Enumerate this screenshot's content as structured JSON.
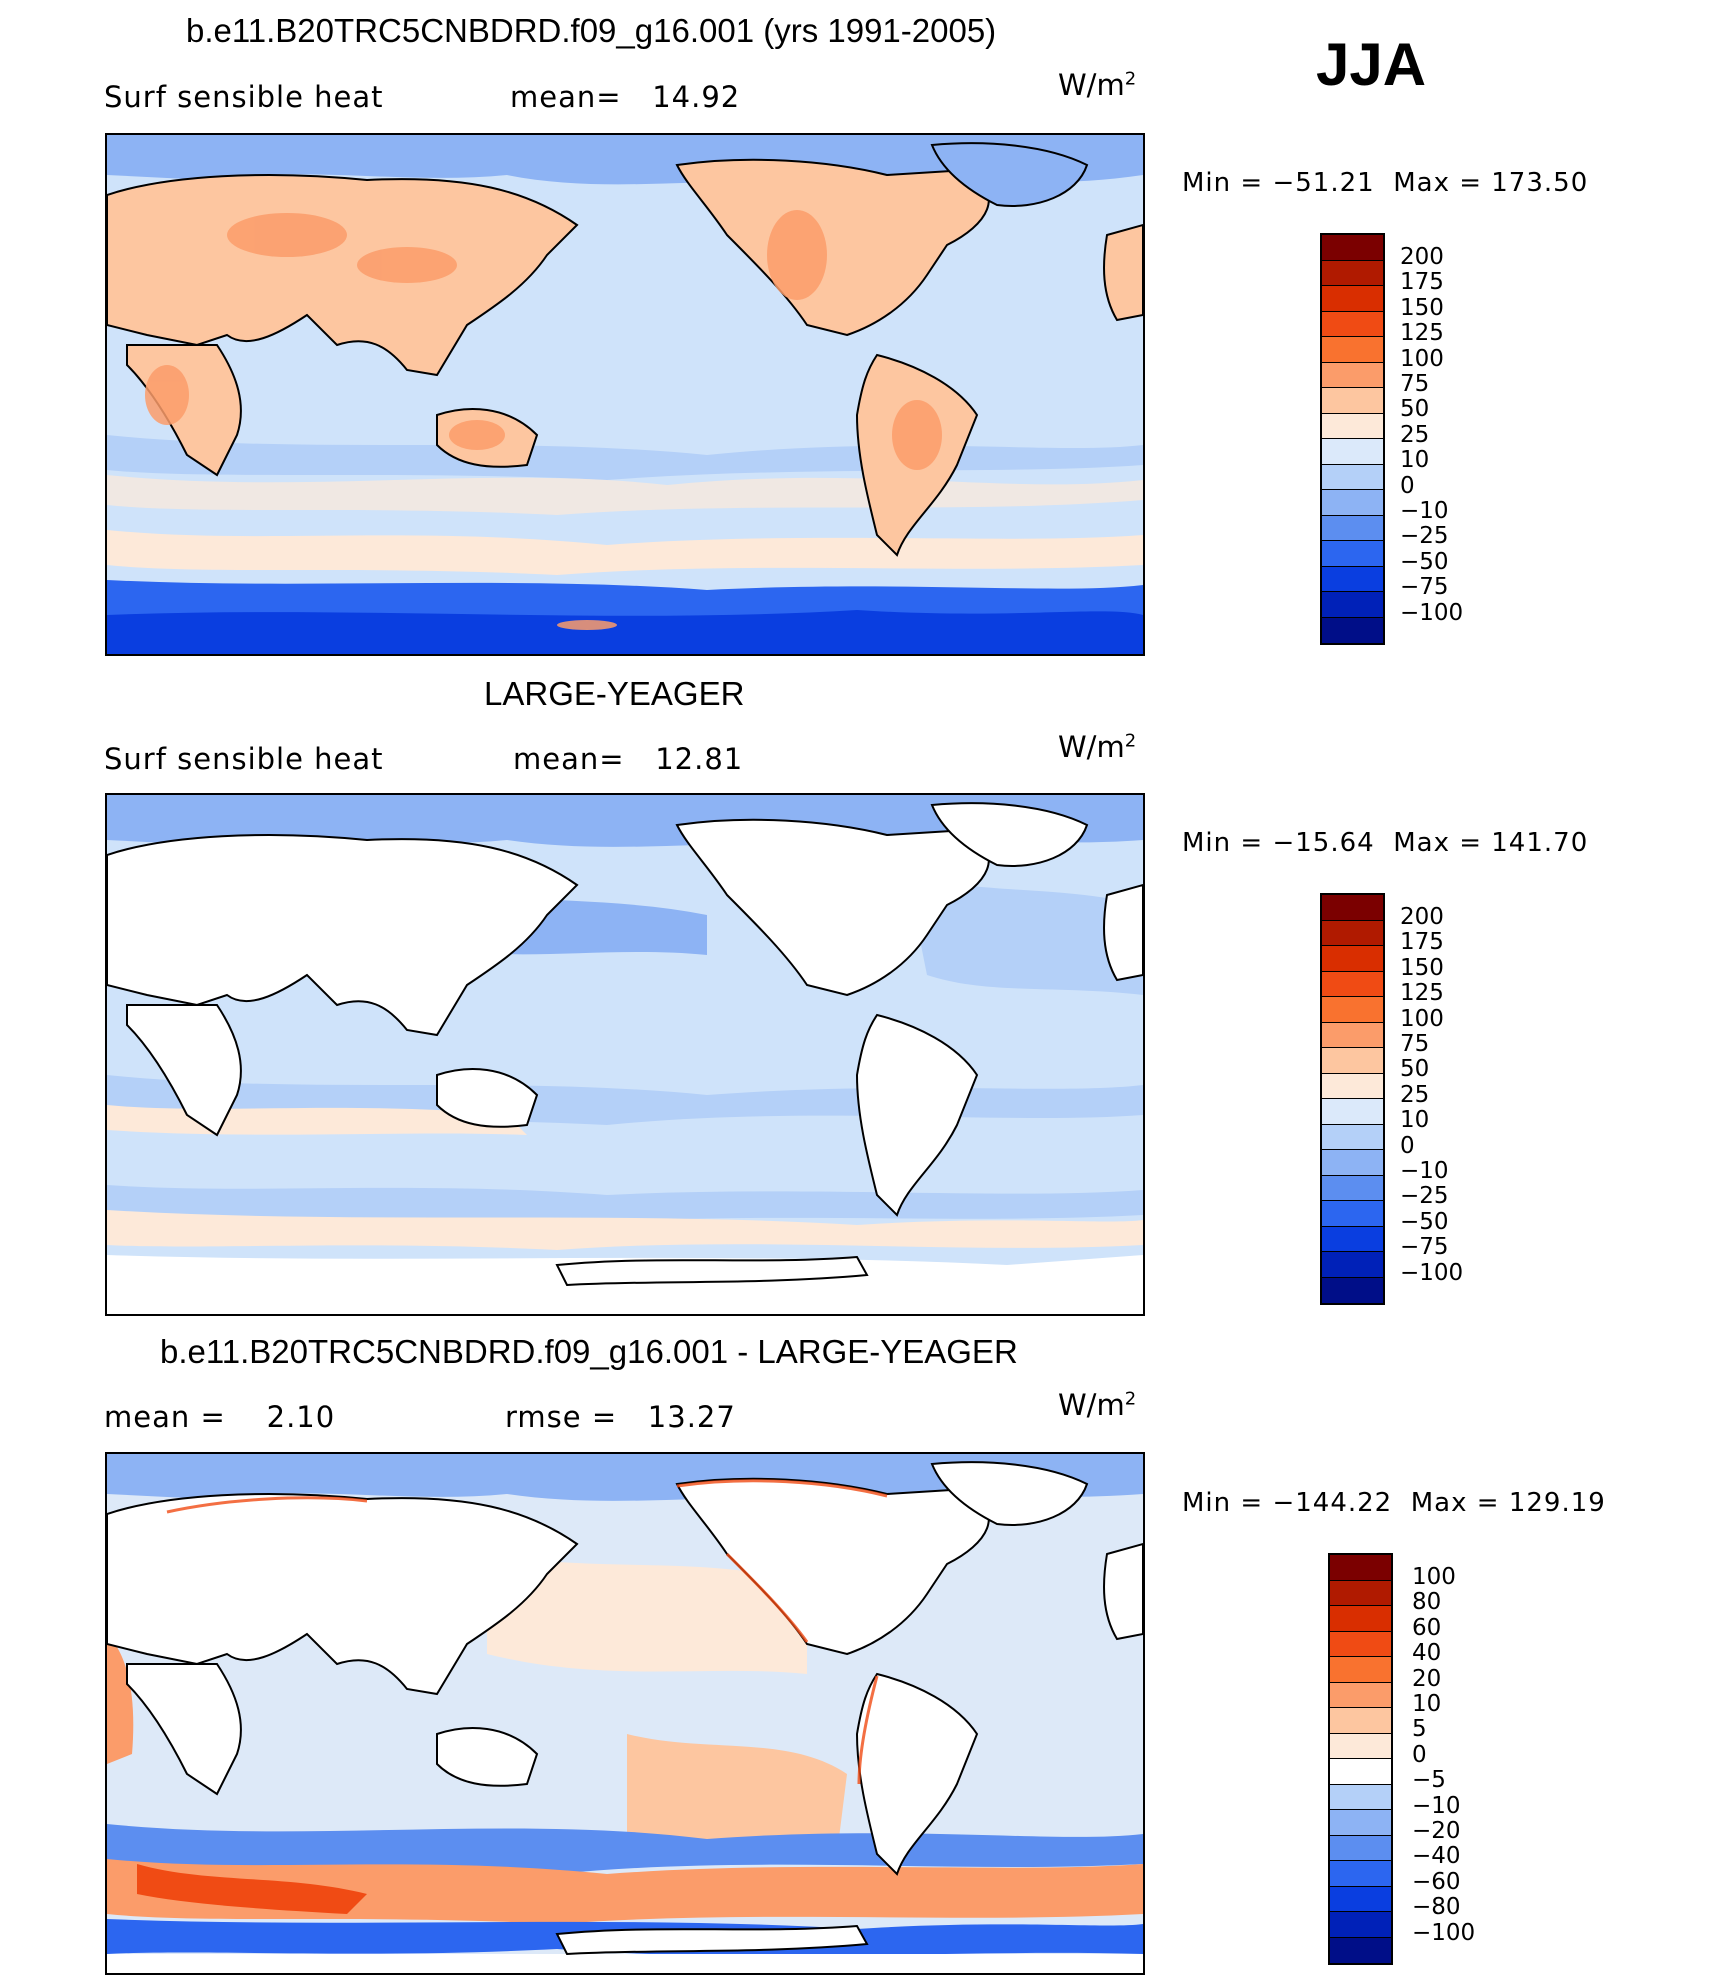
{
  "season": "JJA",
  "panels": [
    {
      "title": "b.e11.B20TRC5CNBDRD.f09_g16.001 (yrs 1991-2005)",
      "left_label": "Surf  sensible  heat",
      "stat_label": "mean=",
      "stat_value": "14.92",
      "unit": "W/m",
      "unit_exp": "2",
      "min_label": "Min  =  −51.21",
      "max_label": "Max  =  173.50",
      "ocean_color": "#cfe3fa",
      "land_fill": "heat",
      "colorbar_labels": [
        "200",
        "175",
        "150",
        "125",
        "100",
        "75",
        "50",
        "25",
        "10",
        "0",
        "−10",
        "−25",
        "−50",
        "−75",
        "−100"
      ],
      "colorbar_colors": [
        "#7b0000",
        "#b01a00",
        "#d92e00",
        "#f04b14",
        "#f9722f",
        "#fb9c6a",
        "#fdc6a0",
        "#fde9d9",
        "#dbe9fa",
        "#b4d0f8",
        "#8db3f4",
        "#5c8ef0",
        "#2c66f0",
        "#0a3ee0",
        "#0021b8",
        "#000e88"
      ]
    },
    {
      "title": "LARGE-YEAGER",
      "left_label": "Surf  sensible  heat",
      "stat_label": "mean=",
      "stat_value": "12.81",
      "unit": "W/m",
      "unit_exp": "2",
      "min_label": "Min  =  −15.64",
      "max_label": "Max  =  141.70",
      "ocean_color": "#cfe3fa",
      "land_fill": "white",
      "colorbar_labels": [
        "200",
        "175",
        "150",
        "125",
        "100",
        "75",
        "50",
        "25",
        "10",
        "0",
        "−10",
        "−25",
        "−50",
        "−75",
        "−100"
      ],
      "colorbar_colors": [
        "#7b0000",
        "#b01a00",
        "#d92e00",
        "#f04b14",
        "#f9722f",
        "#fb9c6a",
        "#fdc6a0",
        "#fde9d9",
        "#dbe9fa",
        "#b4d0f8",
        "#8db3f4",
        "#5c8ef0",
        "#2c66f0",
        "#0a3ee0",
        "#0021b8",
        "#000e88"
      ]
    },
    {
      "title": "b.e11.B20TRC5CNBDRD.f09_g16.001 - LARGE-YEAGER",
      "left_label": "mean  =",
      "left_value": "2.10",
      "stat_label": "rmse  =",
      "stat_value": "13.27",
      "unit": "W/m",
      "unit_exp": "2",
      "min_label": "Min  =  −144.22",
      "max_label": "Max  =  129.19",
      "ocean_color": "#dde9f8",
      "land_fill": "white",
      "colorbar_labels": [
        "100",
        "80",
        "60",
        "40",
        "20",
        "10",
        "5",
        "0",
        "−5",
        "−10",
        "−20",
        "−40",
        "−60",
        "−80",
        "−100"
      ],
      "colorbar_colors": [
        "#7b0000",
        "#b01a00",
        "#d92e00",
        "#f04b14",
        "#f9722f",
        "#fb9c6a",
        "#fdc6a0",
        "#fde9d9",
        "#ffffff",
        "#b4d0f8",
        "#8db3f4",
        "#5c8ef0",
        "#2c66f0",
        "#0a3ee0",
        "#0021b8",
        "#000e88"
      ]
    }
  ]
}
